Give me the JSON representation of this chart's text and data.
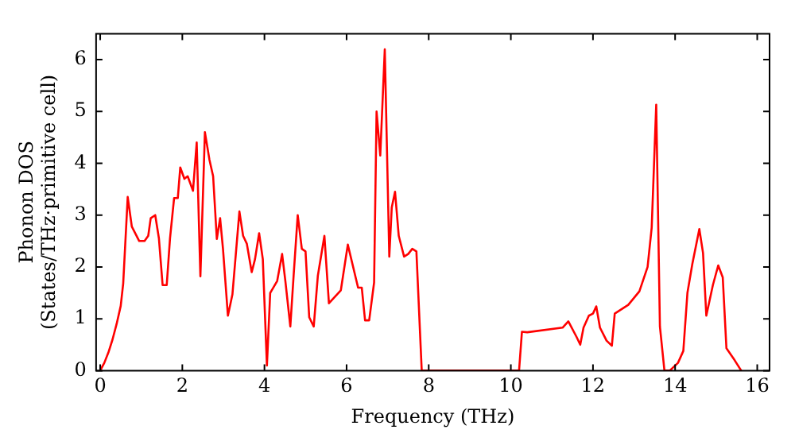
{
  "chart_data": {
    "type": "line",
    "xlabel": "Frequency (THz)",
    "ylabel": "Phonon DOS\n(States/THz·primitive cell)",
    "xlim": [
      -0.1,
      16.3
    ],
    "ylim": [
      0,
      6.5
    ],
    "xticks": [
      0,
      2,
      4,
      6,
      8,
      10,
      12,
      14,
      16
    ],
    "yticks": [
      0,
      1,
      2,
      3,
      4,
      5,
      6
    ],
    "grid": false,
    "legend": false,
    "marker": "none",
    "line_style": "solid",
    "series": [
      {
        "color": "#ff0000",
        "x": [
          0,
          0.1,
          0.2,
          0.3,
          0.4,
          0.5,
          0.56,
          0.67,
          0.77,
          0.95,
          1.08,
          1.17,
          1.23,
          1.34,
          1.43,
          1.52,
          1.62,
          1.7,
          1.8,
          1.89,
          1.95,
          2.05,
          2.13,
          2.26,
          2.35,
          2.44,
          2.55,
          2.66,
          2.75,
          2.84,
          2.92,
          2.99,
          3.11,
          3.22,
          3.39,
          3.48,
          3.57,
          3.69,
          3.77,
          3.87,
          3.96,
          4.06,
          4.14,
          4.31,
          4.43,
          4.51,
          4.63,
          4.71,
          4.81,
          4.91,
          5.0,
          5.09,
          5.2,
          5.3,
          5.46,
          5.57,
          5.86,
          6.03,
          6.28,
          6.37,
          6.45,
          6.55,
          6.67,
          6.73,
          6.82,
          6.93,
          7.04,
          7.1,
          7.18,
          7.27,
          7.4,
          7.5,
          7.6,
          7.7,
          7.83,
          10.2,
          10.27,
          10.4,
          11.26,
          11.4,
          11.6,
          11.69,
          11.77,
          11.9,
          12.0,
          12.08,
          12.17,
          12.33,
          12.46,
          12.53,
          12.86,
          13.13,
          13.33,
          13.43,
          13.54,
          13.63,
          13.74,
          13.87,
          14.07,
          14.2,
          14.3,
          14.42,
          14.59,
          14.68,
          14.76,
          14.92,
          15.05,
          15.16,
          15.25,
          15.45,
          15.61
        ],
        "values": [
          0,
          0.15,
          0.35,
          0.6,
          0.9,
          1.25,
          1.68,
          3.35,
          2.78,
          2.5,
          2.5,
          2.6,
          2.94,
          3.0,
          2.55,
          1.65,
          1.65,
          2.55,
          3.33,
          3.33,
          3.92,
          3.7,
          3.75,
          3.47,
          4.4,
          1.82,
          4.6,
          4.07,
          3.75,
          2.54,
          2.94,
          2.35,
          1.06,
          1.47,
          3.07,
          2.6,
          2.45,
          1.9,
          2.15,
          2.65,
          2.15,
          0.1,
          1.5,
          1.73,
          2.25,
          1.72,
          0.85,
          1.83,
          3.0,
          2.35,
          2.3,
          1.03,
          0.85,
          1.83,
          2.6,
          1.3,
          1.55,
          2.43,
          1.6,
          1.6,
          0.97,
          0.97,
          1.7,
          5.0,
          4.15,
          6.2,
          2.2,
          3.15,
          3.45,
          2.6,
          2.2,
          2.25,
          2.35,
          2.3,
          0,
          0,
          0.75,
          0.74,
          0.83,
          0.95,
          0.65,
          0.5,
          0.83,
          1.06,
          1.1,
          1.24,
          0.83,
          0.58,
          0.48,
          1.1,
          1.27,
          1.53,
          2.0,
          2.76,
          5.13,
          0.85,
          0,
          0,
          0.15,
          0.38,
          1.5,
          2.06,
          2.73,
          2.27,
          1.06,
          1.65,
          2.03,
          1.8,
          0.43,
          0.2,
          0
        ]
      }
    ]
  }
}
